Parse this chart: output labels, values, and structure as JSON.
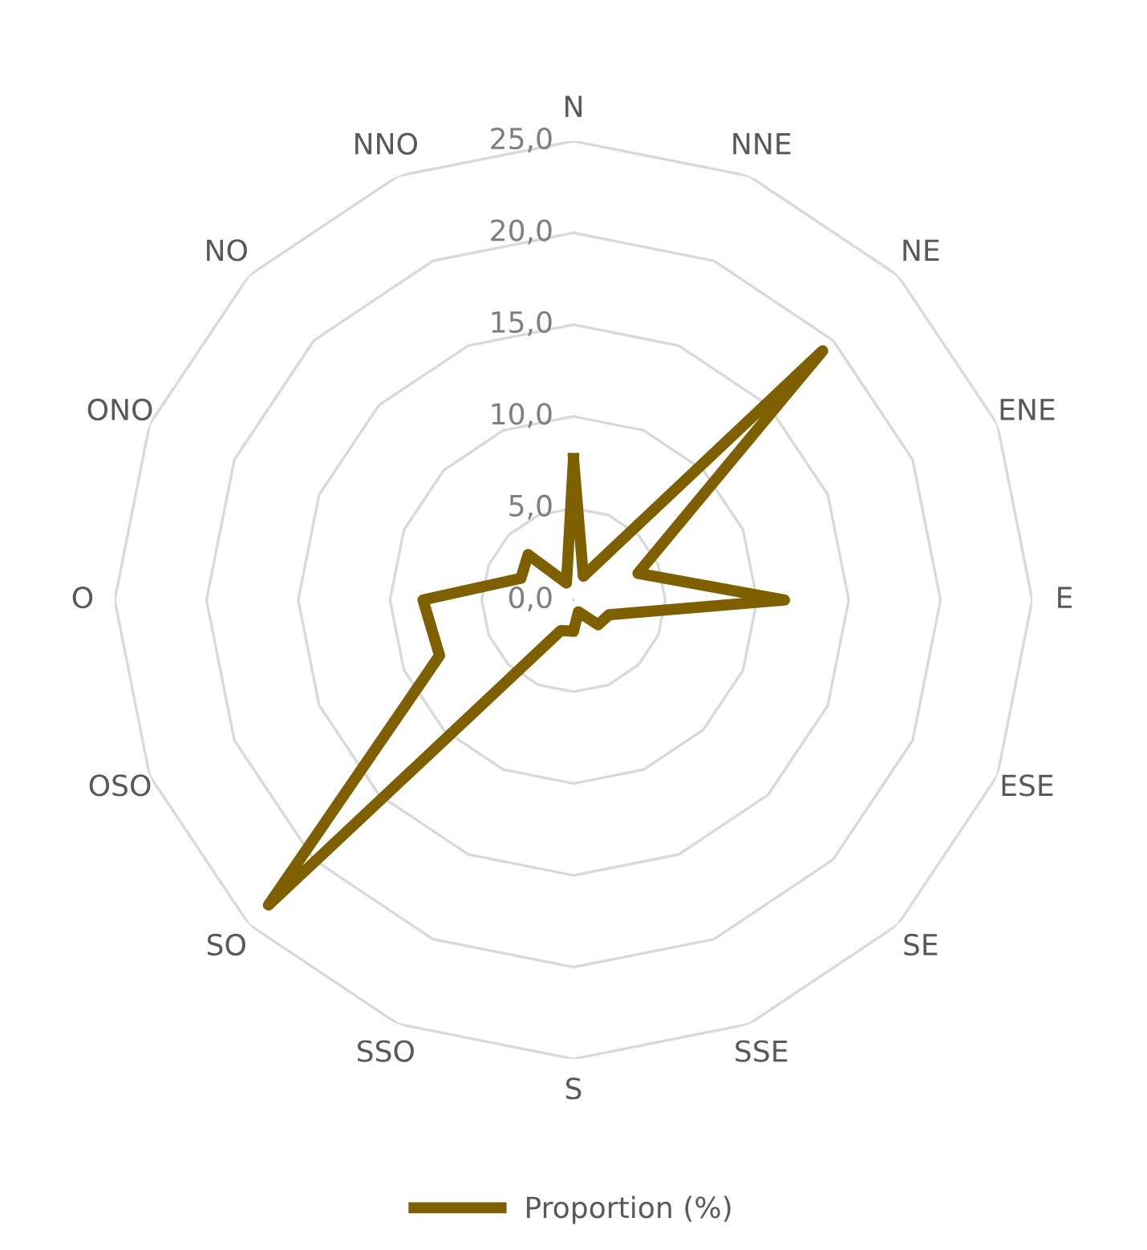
{
  "chart_data": {
    "type": "radar",
    "categories": [
      "N",
      "NNE",
      "NE",
      "ENE",
      "E",
      "ESE",
      "SE",
      "SSE",
      "S",
      "SSO",
      "SO",
      "OSO",
      "O",
      "ONO",
      "NO",
      "NNO"
    ],
    "series": [
      {
        "name": "Proportion (%)",
        "color": "#7f6000",
        "values": [
          7.7,
          1.4,
          19.2,
          3.8,
          11.5,
          2.1,
          1.9,
          0.7,
          1.7,
          1.8,
          23.5,
          7.9,
          8.2,
          3.1,
          3.5,
          1.0
        ]
      }
    ],
    "ylim": [
      0,
      25
    ],
    "yticks": [
      {
        "value": 0,
        "label": "0,0"
      },
      {
        "value": 5,
        "label": "5,0"
      },
      {
        "value": 10,
        "label": "10,0"
      },
      {
        "value": 15,
        "label": "15,0"
      },
      {
        "value": 20,
        "label": "20,0"
      },
      {
        "value": 25,
        "label": "25,0"
      }
    ],
    "grid": true,
    "legend": "bottom",
    "marker": "none",
    "line_style": "solid"
  }
}
